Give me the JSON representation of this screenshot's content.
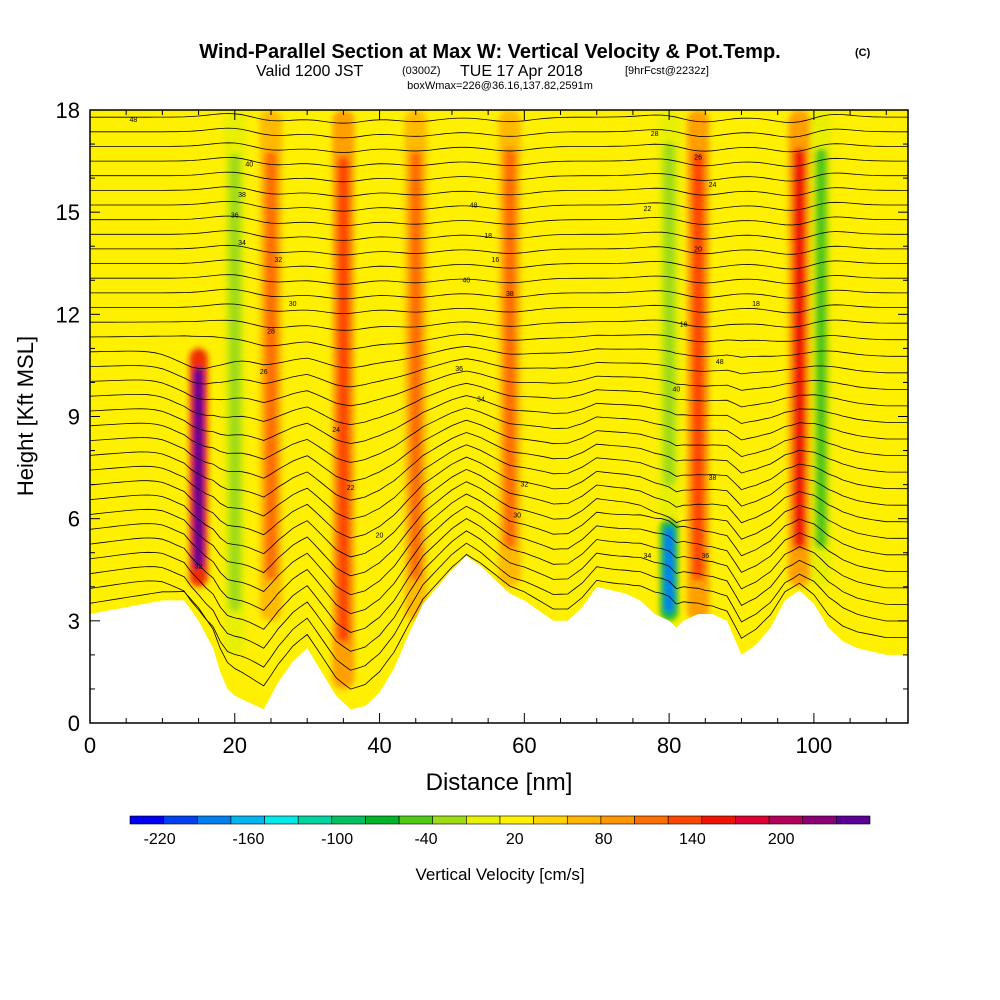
{
  "header": {
    "title": "Wind-Parallel Section at Max W: Vertical Velocity & Pot.Temp.",
    "copyright": "(C)",
    "valid_prefix": "Valid 1200 JST",
    "valid_utc": "(0300Z)",
    "valid_date": "TUE 17 Apr 2018",
    "forecast_info": "[9hrFcst@2232z]",
    "box_info": "boxWmax=226@36.16,137.82,2591m"
  },
  "colors": {
    "palette": [
      "#0000f0",
      "#0040f0",
      "#0080f0",
      "#00b4f0",
      "#00e8e8",
      "#00d2a0",
      "#00c060",
      "#00b428",
      "#50c814",
      "#a0dc14",
      "#e6f000",
      "#fff000",
      "#ffd200",
      "#ffb400",
      "#ff9600",
      "#ff6e00",
      "#ff4600",
      "#f01400",
      "#dc0032",
      "#b4005a",
      "#8c0078",
      "#5a0096"
    ],
    "terrain": "#ffffff"
  },
  "chart_data": {
    "type": "heatmap",
    "title": "Wind-Parallel Section at Max W: Vertical Velocity & Pot.Temp.",
    "xlabel": "Distance [nm]",
    "ylabel": "Height [Kft MSL]",
    "xlim": [
      0,
      113
    ],
    "ylim": [
      0,
      18
    ],
    "x_ticks": [
      "0",
      "20",
      "40",
      "60",
      "80",
      "100"
    ],
    "y_ticks": [
      "0",
      "3",
      "6",
      "9",
      "12",
      "15",
      "18"
    ],
    "colorbar": {
      "label": "Vertical Velocity [cm/s]",
      "min": -240,
      "max": 260,
      "step": 20,
      "tick_labels": [
        "-220",
        "-160",
        "-100",
        "-40",
        "20",
        "80",
        "140",
        "200"
      ]
    },
    "terrain_profile": {
      "x": [
        0,
        5,
        10,
        13,
        15,
        17,
        18,
        19,
        20,
        22,
        24,
        26,
        28,
        30,
        32,
        34,
        36,
        38,
        40,
        42,
        44,
        46,
        48,
        50,
        52,
        54,
        56,
        58,
        60,
        62,
        64,
        66,
        68,
        70,
        72,
        74,
        76,
        78,
        80,
        81,
        82,
        84,
        86,
        88,
        90,
        92,
        94,
        96,
        98,
        100,
        102,
        104,
        106,
        108,
        110,
        113
      ],
      "height": [
        3.2,
        3.4,
        3.6,
        3.6,
        3.0,
        2.2,
        1.5,
        1.0,
        0.8,
        0.6,
        0.4,
        1.2,
        1.8,
        2.2,
        1.5,
        0.8,
        0.4,
        0.5,
        0.9,
        1.6,
        2.6,
        3.5,
        4.0,
        4.5,
        4.9,
        4.6,
        4.2,
        3.8,
        3.6,
        3.3,
        3.0,
        3.0,
        3.4,
        4.0,
        3.9,
        3.8,
        3.6,
        3.2,
        3.0,
        2.8,
        3.0,
        3.2,
        3.2,
        3.0,
        2.0,
        2.3,
        2.8,
        3.6,
        3.9,
        3.5,
        2.8,
        2.4,
        2.2,
        2.1,
        2.0,
        2.0
      ]
    },
    "w_features": [
      {
        "x": 15,
        "z_bottom": 4,
        "z_top": 11,
        "w": 226
      },
      {
        "x": 20,
        "z_bottom": 2,
        "z_top": 18,
        "w": -60
      },
      {
        "x": 25,
        "z_bottom": 3,
        "z_top": 18,
        "w": 60
      },
      {
        "x": 35,
        "z_bottom": 1,
        "z_top": 18,
        "w": 80
      },
      {
        "x": 45,
        "z_bottom": 3,
        "z_top": 18,
        "w": 60
      },
      {
        "x": 58,
        "z_bottom": 4,
        "z_top": 18,
        "w": 60
      },
      {
        "x": 80,
        "z_bottom": 3,
        "z_top": 6,
        "w": -200
      },
      {
        "x": 80,
        "z_bottom": 6,
        "z_top": 18,
        "w": -50
      },
      {
        "x": 84,
        "z_bottom": 3,
        "z_top": 18,
        "w": 80
      },
      {
        "x": 98,
        "z_bottom": 4,
        "z_top": 18,
        "w": 110
      },
      {
        "x": 101,
        "z_bottom": 4,
        "z_top": 18,
        "w": -80
      }
    ],
    "theta_contour_labels": [
      "48",
      "40",
      "38",
      "36",
      "34",
      "32",
      "30",
      "28",
      "26",
      "24",
      "22",
      "20",
      "18",
      "16"
    ]
  }
}
